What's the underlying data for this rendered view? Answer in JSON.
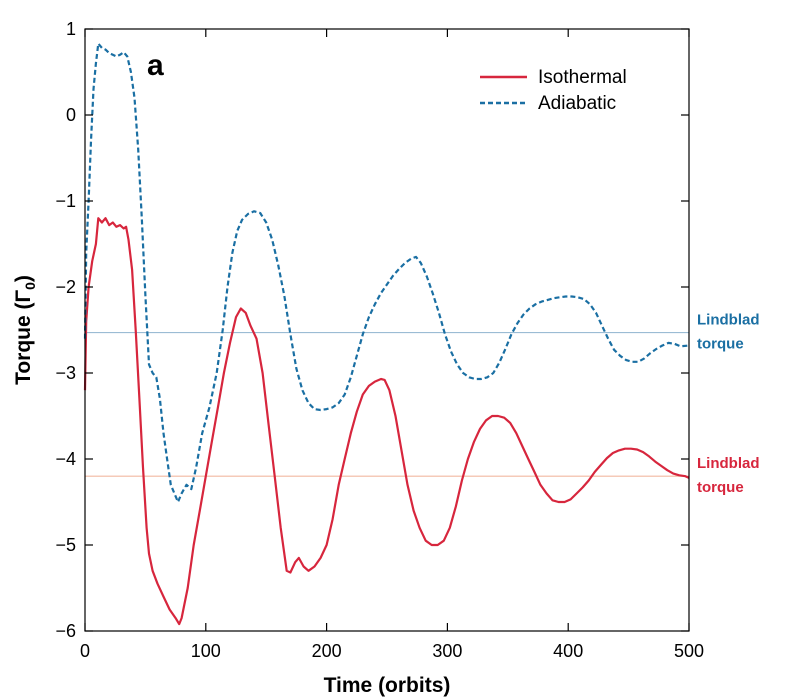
{
  "chart_data": {
    "type": "line",
    "panel_label": "a",
    "xlabel": "Time (orbits)",
    "ylabel": "Torque (Γ",
    "ylabel_sub": "0",
    "ylabel_close": ")",
    "xlim": [
      0,
      500
    ],
    "ylim": [
      -6,
      1
    ],
    "xticks": [
      0,
      100,
      200,
      300,
      400,
      500
    ],
    "yticks": [
      -6,
      -5,
      -4,
      -3,
      -2,
      -1,
      0,
      1
    ],
    "ytick_labels": [
      "−6",
      "−5",
      "−4",
      "−3",
      "−2",
      "−1",
      "0",
      "1"
    ],
    "legend": {
      "position": "top-right",
      "entries": [
        "Isothermal",
        "Adiabatic"
      ]
    },
    "series": [
      {
        "name": "Isothermal",
        "color": "#d7263d",
        "style": "solid",
        "points": [
          [
            0,
            -3.2
          ],
          [
            1,
            -2.4
          ],
          [
            3,
            -2.0
          ],
          [
            6,
            -1.7
          ],
          [
            9,
            -1.5
          ],
          [
            11,
            -1.2
          ],
          [
            14,
            -1.25
          ],
          [
            17,
            -1.2
          ],
          [
            20,
            -1.28
          ],
          [
            23,
            -1.25
          ],
          [
            26,
            -1.3
          ],
          [
            29,
            -1.28
          ],
          [
            32,
            -1.32
          ],
          [
            34,
            -1.3
          ],
          [
            36,
            -1.45
          ],
          [
            39,
            -1.8
          ],
          [
            42,
            -2.5
          ],
          [
            45,
            -3.3
          ],
          [
            48,
            -4.1
          ],
          [
            51,
            -4.8
          ],
          [
            53,
            -5.1
          ],
          [
            56,
            -5.3
          ],
          [
            60,
            -5.45
          ],
          [
            65,
            -5.6
          ],
          [
            70,
            -5.75
          ],
          [
            75,
            -5.85
          ],
          [
            78,
            -5.92
          ],
          [
            80,
            -5.85
          ],
          [
            85,
            -5.5
          ],
          [
            90,
            -5.0
          ],
          [
            95,
            -4.6
          ],
          [
            100,
            -4.2
          ],
          [
            105,
            -3.8
          ],
          [
            110,
            -3.4
          ],
          [
            115,
            -3.0
          ],
          [
            120,
            -2.65
          ],
          [
            125,
            -2.35
          ],
          [
            129,
            -2.25
          ],
          [
            133,
            -2.3
          ],
          [
            137,
            -2.45
          ],
          [
            142,
            -2.6
          ],
          [
            147,
            -3.0
          ],
          [
            152,
            -3.6
          ],
          [
            157,
            -4.2
          ],
          [
            162,
            -4.8
          ],
          [
            167,
            -5.3
          ],
          [
            170,
            -5.32
          ],
          [
            174,
            -5.2
          ],
          [
            177,
            -5.15
          ],
          [
            181,
            -5.25
          ],
          [
            185,
            -5.3
          ],
          [
            190,
            -5.25
          ],
          [
            195,
            -5.15
          ],
          [
            200,
            -5.0
          ],
          [
            205,
            -4.7
          ],
          [
            210,
            -4.3
          ],
          [
            215,
            -4.0
          ],
          [
            220,
            -3.7
          ],
          [
            225,
            -3.45
          ],
          [
            230,
            -3.25
          ],
          [
            235,
            -3.15
          ],
          [
            240,
            -3.1
          ],
          [
            245,
            -3.07
          ],
          [
            248,
            -3.08
          ],
          [
            252,
            -3.2
          ],
          [
            257,
            -3.5
          ],
          [
            262,
            -3.9
          ],
          [
            267,
            -4.3
          ],
          [
            272,
            -4.6
          ],
          [
            277,
            -4.8
          ],
          [
            282,
            -4.95
          ],
          [
            287,
            -5.0
          ],
          [
            292,
            -5.0
          ],
          [
            297,
            -4.95
          ],
          [
            302,
            -4.8
          ],
          [
            307,
            -4.55
          ],
          [
            312,
            -4.25
          ],
          [
            317,
            -4.0
          ],
          [
            322,
            -3.8
          ],
          [
            327,
            -3.65
          ],
          [
            332,
            -3.55
          ],
          [
            337,
            -3.5
          ],
          [
            342,
            -3.5
          ],
          [
            347,
            -3.52
          ],
          [
            352,
            -3.58
          ],
          [
            357,
            -3.7
          ],
          [
            362,
            -3.85
          ],
          [
            367,
            -4.0
          ],
          [
            372,
            -4.15
          ],
          [
            377,
            -4.3
          ],
          [
            382,
            -4.4
          ],
          [
            387,
            -4.48
          ],
          [
            392,
            -4.5
          ],
          [
            397,
            -4.5
          ],
          [
            402,
            -4.47
          ],
          [
            407,
            -4.4
          ],
          [
            412,
            -4.33
          ],
          [
            417,
            -4.25
          ],
          [
            422,
            -4.15
          ],
          [
            427,
            -4.07
          ],
          [
            432,
            -3.99
          ],
          [
            437,
            -3.93
          ],
          [
            442,
            -3.9
          ],
          [
            447,
            -3.88
          ],
          [
            452,
            -3.88
          ],
          [
            457,
            -3.89
          ],
          [
            462,
            -3.92
          ],
          [
            467,
            -3.97
          ],
          [
            472,
            -4.03
          ],
          [
            477,
            -4.08
          ],
          [
            482,
            -4.13
          ],
          [
            487,
            -4.17
          ],
          [
            492,
            -4.19
          ],
          [
            497,
            -4.2
          ],
          [
            500,
            -4.22
          ]
        ]
      },
      {
        "name": "Adiabatic",
        "color": "#1a6fa3",
        "style": "dashed",
        "points": [
          [
            0,
            -2.6
          ],
          [
            1,
            -1.6
          ],
          [
            3,
            -1.0
          ],
          [
            5,
            -0.3
          ],
          [
            7,
            0.3
          ],
          [
            9,
            0.6
          ],
          [
            11,
            0.83
          ],
          [
            14,
            0.78
          ],
          [
            17,
            0.76
          ],
          [
            20,
            0.72
          ],
          [
            23,
            0.7
          ],
          [
            26,
            0.68
          ],
          [
            29,
            0.7
          ],
          [
            32,
            0.73
          ],
          [
            35,
            0.68
          ],
          [
            38,
            0.5
          ],
          [
            41,
            0.2
          ],
          [
            44,
            -0.4
          ],
          [
            47,
            -1.2
          ],
          [
            50,
            -2.1
          ],
          [
            53,
            -2.9
          ],
          [
            56,
            -3.0
          ],
          [
            59,
            -3.05
          ],
          [
            62,
            -3.3
          ],
          [
            65,
            -3.7
          ],
          [
            68,
            -4.0
          ],
          [
            71,
            -4.3
          ],
          [
            74,
            -4.4
          ],
          [
            77,
            -4.5
          ],
          [
            80,
            -4.4
          ],
          [
            84,
            -4.3
          ],
          [
            88,
            -4.35
          ],
          [
            92,
            -4.1
          ],
          [
            97,
            -3.7
          ],
          [
            103,
            -3.4
          ],
          [
            109,
            -3.0
          ],
          [
            114,
            -2.5
          ],
          [
            118,
            -2.0
          ],
          [
            122,
            -1.6
          ],
          [
            126,
            -1.35
          ],
          [
            130,
            -1.22
          ],
          [
            135,
            -1.15
          ],
          [
            140,
            -1.12
          ],
          [
            145,
            -1.14
          ],
          [
            150,
            -1.25
          ],
          [
            155,
            -1.45
          ],
          [
            160,
            -1.75
          ],
          [
            165,
            -2.1
          ],
          [
            170,
            -2.55
          ],
          [
            175,
            -2.95
          ],
          [
            180,
            -3.2
          ],
          [
            185,
            -3.35
          ],
          [
            190,
            -3.42
          ],
          [
            195,
            -3.43
          ],
          [
            200,
            -3.42
          ],
          [
            205,
            -3.4
          ],
          [
            210,
            -3.35
          ],
          [
            215,
            -3.25
          ],
          [
            220,
            -3.05
          ],
          [
            225,
            -2.8
          ],
          [
            230,
            -2.55
          ],
          [
            235,
            -2.35
          ],
          [
            240,
            -2.2
          ],
          [
            245,
            -2.07
          ],
          [
            250,
            -1.97
          ],
          [
            255,
            -1.87
          ],
          [
            260,
            -1.79
          ],
          [
            265,
            -1.72
          ],
          [
            270,
            -1.67
          ],
          [
            274,
            -1.65
          ],
          [
            278,
            -1.72
          ],
          [
            283,
            -1.88
          ],
          [
            288,
            -2.08
          ],
          [
            293,
            -2.3
          ],
          [
            298,
            -2.55
          ],
          [
            303,
            -2.75
          ],
          [
            308,
            -2.9
          ],
          [
            313,
            -3.0
          ],
          [
            318,
            -3.05
          ],
          [
            323,
            -3.07
          ],
          [
            328,
            -3.07
          ],
          [
            333,
            -3.05
          ],
          [
            338,
            -3.0
          ],
          [
            343,
            -2.88
          ],
          [
            348,
            -2.72
          ],
          [
            353,
            -2.55
          ],
          [
            358,
            -2.42
          ],
          [
            363,
            -2.32
          ],
          [
            368,
            -2.25
          ],
          [
            373,
            -2.2
          ],
          [
            378,
            -2.17
          ],
          [
            383,
            -2.15
          ],
          [
            388,
            -2.13
          ],
          [
            393,
            -2.12
          ],
          [
            398,
            -2.11
          ],
          [
            403,
            -2.11
          ],
          [
            408,
            -2.12
          ],
          [
            413,
            -2.14
          ],
          [
            418,
            -2.2
          ],
          [
            423,
            -2.3
          ],
          [
            428,
            -2.45
          ],
          [
            433,
            -2.6
          ],
          [
            438,
            -2.73
          ],
          [
            443,
            -2.8
          ],
          [
            448,
            -2.85
          ],
          [
            453,
            -2.87
          ],
          [
            458,
            -2.87
          ],
          [
            463,
            -2.83
          ],
          [
            468,
            -2.77
          ],
          [
            473,
            -2.72
          ],
          [
            478,
            -2.68
          ],
          [
            483,
            -2.65
          ],
          [
            488,
            -2.66
          ],
          [
            493,
            -2.69
          ],
          [
            500,
            -2.68
          ]
        ]
      }
    ],
    "reference_lines": [
      {
        "name": "Lindblad torque (adiabatic)",
        "y": -2.53,
        "color": "#9bbcd4",
        "label_lines": [
          "Lindblad",
          "torque"
        ],
        "label_color": "#1a6fa3"
      },
      {
        "name": "Lindblad torque (isothermal)",
        "y": -4.2,
        "color": "#f2b8a0",
        "label_lines": [
          "Lindblad",
          "torque"
        ],
        "label_color": "#d7263d"
      }
    ]
  }
}
